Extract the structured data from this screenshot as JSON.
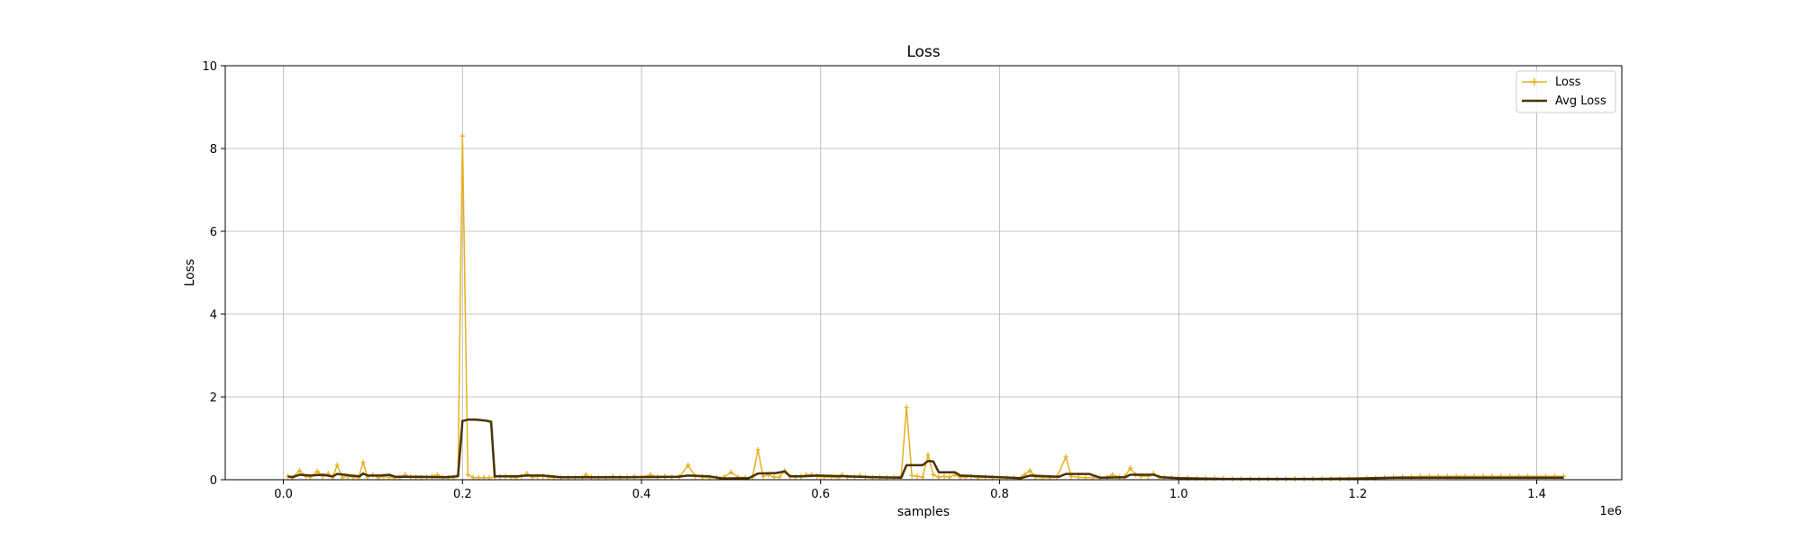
{
  "chart_data": {
    "type": "line",
    "title": "Loss",
    "xlabel": "samples",
    "ylabel": "Loss",
    "x_offset_label": "1e6",
    "xlim": [
      -65000,
      1495000
    ],
    "ylim": [
      0,
      10
    ],
    "xticks": [
      0,
      200000,
      400000,
      600000,
      800000,
      1000000,
      1200000,
      1400000
    ],
    "xtick_labels": [
      "0.0",
      "0.2",
      "0.4",
      "0.6",
      "0.8",
      "1.0",
      "1.2",
      "1.4"
    ],
    "yticks": [
      0,
      2,
      4,
      6,
      8,
      10
    ],
    "ytick_labels": [
      "0",
      "2",
      "4",
      "6",
      "8",
      "10"
    ],
    "grid": true,
    "legend_position": "top-right",
    "series": [
      {
        "name": "Loss",
        "color": "#e8b020",
        "marker": "plus",
        "points": [
          [
            5000,
            0.08
          ],
          [
            10000,
            0.05
          ],
          [
            18000,
            0.22
          ],
          [
            25000,
            0.08
          ],
          [
            30000,
            0.06
          ],
          [
            38000,
            0.2
          ],
          [
            44000,
            0.08
          ],
          [
            50000,
            0.15
          ],
          [
            55000,
            0.05
          ],
          [
            60000,
            0.35
          ],
          [
            66000,
            0.05
          ],
          [
            72000,
            0.08
          ],
          [
            78000,
            0.06
          ],
          [
            84000,
            0.05
          ],
          [
            89000,
            0.42
          ],
          [
            94000,
            0.06
          ],
          [
            100000,
            0.12
          ],
          [
            106000,
            0.05
          ],
          [
            112000,
            0.08
          ],
          [
            118000,
            0.06
          ],
          [
            124000,
            0.05
          ],
          [
            130000,
            0.05
          ],
          [
            136000,
            0.12
          ],
          [
            142000,
            0.06
          ],
          [
            148000,
            0.05
          ],
          [
            154000,
            0.05
          ],
          [
            160000,
            0.06
          ],
          [
            166000,
            0.08
          ],
          [
            172000,
            0.12
          ],
          [
            178000,
            0.06
          ],
          [
            184000,
            0.05
          ],
          [
            190000,
            0.05
          ],
          [
            195000,
            0.12
          ],
          [
            200000,
            8.3
          ],
          [
            206000,
            0.12
          ],
          [
            212000,
            0.05
          ],
          [
            218000,
            0.05
          ],
          [
            224000,
            0.05
          ],
          [
            230000,
            0.05
          ],
          [
            236000,
            0.06
          ],
          [
            242000,
            0.08
          ],
          [
            248000,
            0.08
          ],
          [
            254000,
            0.06
          ],
          [
            260000,
            0.05
          ],
          [
            266000,
            0.08
          ],
          [
            272000,
            0.15
          ],
          [
            278000,
            0.06
          ],
          [
            284000,
            0.08
          ],
          [
            290000,
            0.08
          ],
          [
            296000,
            0.06
          ],
          [
            302000,
            0.05
          ],
          [
            310000,
            0.05
          ],
          [
            318000,
            0.05
          ],
          [
            326000,
            0.05
          ],
          [
            334000,
            0.05
          ],
          [
            338000,
            0.12
          ],
          [
            344000,
            0.06
          ],
          [
            352000,
            0.05
          ],
          [
            360000,
            0.05
          ],
          [
            368000,
            0.08
          ],
          [
            376000,
            0.06
          ],
          [
            384000,
            0.06
          ],
          [
            392000,
            0.08
          ],
          [
            400000,
            0.06
          ],
          [
            410000,
            0.12
          ],
          [
            418000,
            0.06
          ],
          [
            426000,
            0.08
          ],
          [
            434000,
            0.06
          ],
          [
            442000,
            0.06
          ],
          [
            452000,
            0.35
          ],
          [
            460000,
            0.08
          ],
          [
            468000,
            0.06
          ],
          [
            476000,
            0.05
          ],
          [
            484000,
            0.05
          ],
          [
            492000,
            0.06
          ],
          [
            500000,
            0.18
          ],
          [
            508000,
            0.06
          ],
          [
            516000,
            0.05
          ],
          [
            524000,
            0.06
          ],
          [
            530000,
            0.72
          ],
          [
            536000,
            0.08
          ],
          [
            542000,
            0.12
          ],
          [
            548000,
            0.06
          ],
          [
            554000,
            0.06
          ],
          [
            560000,
            0.22
          ],
          [
            566000,
            0.08
          ],
          [
            572000,
            0.06
          ],
          [
            578000,
            0.08
          ],
          [
            584000,
            0.12
          ],
          [
            590000,
            0.12
          ],
          [
            596000,
            0.08
          ],
          [
            604000,
            0.06
          ],
          [
            612000,
            0.06
          ],
          [
            620000,
            0.05
          ],
          [
            624000,
            0.12
          ],
          [
            630000,
            0.06
          ],
          [
            638000,
            0.06
          ],
          [
            644000,
            0.1
          ],
          [
            650000,
            0.06
          ],
          [
            658000,
            0.05
          ],
          [
            666000,
            0.06
          ],
          [
            674000,
            0.05
          ],
          [
            682000,
            0.06
          ],
          [
            690000,
            0.08
          ],
          [
            696000,
            1.75
          ],
          [
            702000,
            0.1
          ],
          [
            708000,
            0.08
          ],
          [
            714000,
            0.06
          ],
          [
            720000,
            0.6
          ],
          [
            726000,
            0.12
          ],
          [
            732000,
            0.06
          ],
          [
            738000,
            0.08
          ],
          [
            744000,
            0.06
          ],
          [
            750000,
            0.12
          ],
          [
            756000,
            0.06
          ],
          [
            762000,
            0.06
          ],
          [
            768000,
            0.08
          ],
          [
            776000,
            0.05
          ],
          [
            784000,
            0.06
          ],
          [
            792000,
            0.05
          ],
          [
            800000,
            0.05
          ],
          [
            808000,
            0.05
          ],
          [
            816000,
            0.05
          ],
          [
            824000,
            0.05
          ],
          [
            828000,
            0.12
          ],
          [
            834000,
            0.22
          ],
          [
            840000,
            0.06
          ],
          [
            848000,
            0.05
          ],
          [
            856000,
            0.05
          ],
          [
            864000,
            0.06
          ],
          [
            874000,
            0.55
          ],
          [
            880000,
            0.08
          ],
          [
            888000,
            0.06
          ],
          [
            896000,
            0.05
          ],
          [
            904000,
            0.05
          ],
          [
            912000,
            0.05
          ],
          [
            920000,
            0.06
          ],
          [
            926000,
            0.12
          ],
          [
            934000,
            0.06
          ],
          [
            940000,
            0.08
          ],
          [
            946000,
            0.28
          ],
          [
            952000,
            0.12
          ],
          [
            958000,
            0.08
          ],
          [
            966000,
            0.08
          ],
          [
            972000,
            0.15
          ],
          [
            978000,
            0.06
          ],
          [
            984000,
            0.05
          ],
          [
            992000,
            0.05
          ],
          [
            1000000,
            0.05
          ],
          [
            1010000,
            0.04
          ],
          [
            1020000,
            0.03
          ],
          [
            1030000,
            0.03
          ],
          [
            1040000,
            0.03
          ],
          [
            1050000,
            0.03
          ],
          [
            1060000,
            0.02
          ],
          [
            1070000,
            0.02
          ],
          [
            1080000,
            0.02
          ],
          [
            1090000,
            0.02
          ],
          [
            1100000,
            0.02
          ],
          [
            1110000,
            0.02
          ],
          [
            1120000,
            0.02
          ],
          [
            1130000,
            0.02
          ],
          [
            1140000,
            0.02
          ],
          [
            1150000,
            0.02
          ],
          [
            1160000,
            0.02
          ],
          [
            1170000,
            0.02
          ],
          [
            1180000,
            0.02
          ],
          [
            1190000,
            0.03
          ],
          [
            1200000,
            0.03
          ],
          [
            1210000,
            0.04
          ],
          [
            1220000,
            0.04
          ],
          [
            1230000,
            0.05
          ],
          [
            1240000,
            0.06
          ],
          [
            1250000,
            0.07
          ],
          [
            1260000,
            0.07
          ],
          [
            1270000,
            0.08
          ],
          [
            1280000,
            0.08
          ],
          [
            1290000,
            0.08
          ],
          [
            1300000,
            0.08
          ],
          [
            1310000,
            0.08
          ],
          [
            1320000,
            0.08
          ],
          [
            1330000,
            0.08
          ],
          [
            1340000,
            0.08
          ],
          [
            1350000,
            0.08
          ],
          [
            1360000,
            0.08
          ],
          [
            1370000,
            0.08
          ],
          [
            1380000,
            0.08
          ],
          [
            1390000,
            0.08
          ],
          [
            1400000,
            0.08
          ],
          [
            1410000,
            0.08
          ],
          [
            1420000,
            0.08
          ],
          [
            1430000,
            0.08
          ]
        ]
      },
      {
        "name": "Avg Loss",
        "color": "#4a3200",
        "marker": "none",
        "points": [
          [
            5000,
            0.08
          ],
          [
            10000,
            0.06
          ],
          [
            18000,
            0.12
          ],
          [
            30000,
            0.1
          ],
          [
            44000,
            0.12
          ],
          [
            55000,
            0.08
          ],
          [
            60000,
            0.14
          ],
          [
            75000,
            0.1
          ],
          [
            85000,
            0.08
          ],
          [
            89000,
            0.15
          ],
          [
            94000,
            0.1
          ],
          [
            110000,
            0.1
          ],
          [
            118000,
            0.12
          ],
          [
            125000,
            0.07
          ],
          [
            150000,
            0.07
          ],
          [
            180000,
            0.06
          ],
          [
            195000,
            0.08
          ],
          [
            200000,
            1.42
          ],
          [
            206000,
            1.45
          ],
          [
            215000,
            1.45
          ],
          [
            225000,
            1.43
          ],
          [
            232000,
            1.4
          ],
          [
            236000,
            0.08
          ],
          [
            260000,
            0.08
          ],
          [
            272000,
            0.1
          ],
          [
            290000,
            0.1
          ],
          [
            310000,
            0.06
          ],
          [
            340000,
            0.06
          ],
          [
            380000,
            0.06
          ],
          [
            440000,
            0.07
          ],
          [
            452000,
            0.1
          ],
          [
            476000,
            0.08
          ],
          [
            490000,
            0.03
          ],
          [
            520000,
            0.04
          ],
          [
            530000,
            0.15
          ],
          [
            550000,
            0.16
          ],
          [
            560000,
            0.2
          ],
          [
            566000,
            0.08
          ],
          [
            580000,
            0.08
          ],
          [
            596000,
            0.1
          ],
          [
            630000,
            0.08
          ],
          [
            660000,
            0.06
          ],
          [
            690000,
            0.05
          ],
          [
            696000,
            0.35
          ],
          [
            714000,
            0.35
          ],
          [
            720000,
            0.45
          ],
          [
            726000,
            0.44
          ],
          [
            732000,
            0.18
          ],
          [
            750000,
            0.18
          ],
          [
            756000,
            0.1
          ],
          [
            800000,
            0.06
          ],
          [
            824000,
            0.04
          ],
          [
            834000,
            0.1
          ],
          [
            866000,
            0.07
          ],
          [
            874000,
            0.14
          ],
          [
            900000,
            0.14
          ],
          [
            912000,
            0.05
          ],
          [
            940000,
            0.06
          ],
          [
            946000,
            0.12
          ],
          [
            972000,
            0.12
          ],
          [
            980000,
            0.06
          ],
          [
            1000000,
            0.04
          ],
          [
            1050000,
            0.02
          ],
          [
            1150000,
            0.02
          ],
          [
            1200000,
            0.03
          ],
          [
            1240000,
            0.05
          ],
          [
            1300000,
            0.05
          ],
          [
            1430000,
            0.05
          ]
        ]
      }
    ]
  }
}
